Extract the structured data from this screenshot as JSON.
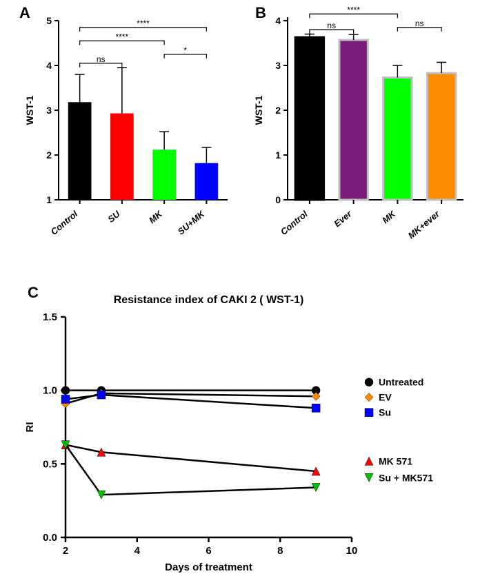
{
  "panelA": {
    "label": "A",
    "type": "bar",
    "ylabel": "WST-1",
    "ylim": [
      1,
      5
    ],
    "yticks": [
      1,
      2,
      3,
      4,
      5
    ],
    "label_fontsize": 14,
    "categories": [
      "Control",
      "SU",
      "MK",
      "SU+MK"
    ],
    "values": [
      3.18,
      2.93,
      2.12,
      1.82
    ],
    "errors": [
      0.62,
      1.02,
      0.4,
      0.35
    ],
    "bar_colors": [
      "#000000",
      "#ff0000",
      "#00ff00",
      "#0000ff"
    ],
    "bar_width": 0.55,
    "comparisons": [
      {
        "from": 0,
        "to": 2,
        "label": "****",
        "y": 4.55
      },
      {
        "from": 0,
        "to": 3,
        "label": "****",
        "y": 4.85
      },
      {
        "from": 2,
        "to": 3,
        "label": "*",
        "y": 4.25
      },
      {
        "from": 0,
        "to": 1,
        "label": "ns",
        "y": 4.05
      }
    ],
    "axis_color": "#000000",
    "text_color": "#000000"
  },
  "panelB": {
    "label": "B",
    "type": "bar",
    "ylabel": "WST-1",
    "ylim": [
      0,
      4
    ],
    "yticks": [
      0,
      1,
      2,
      3,
      4
    ],
    "label_fontsize": 14,
    "categories": [
      "Control",
      "Ever",
      "MK",
      "MK+ever"
    ],
    "values": [
      3.63,
      3.57,
      2.73,
      2.83
    ],
    "errors": [
      0.07,
      0.12,
      0.27,
      0.24
    ],
    "bar_face": [
      "#000000",
      "#7a1a7a",
      "#00ff00",
      "#ff8c00"
    ],
    "bar_edge": [
      "#000000",
      "#bfbfbf",
      "#bfbfbf",
      "#bfbfbf"
    ],
    "bar_width": 0.65,
    "comparisons": [
      {
        "from": 0,
        "to": 3,
        "label": "****",
        "y": 4.45
      },
      {
        "from": 0,
        "to": 2,
        "label": "****",
        "y": 4.15
      },
      {
        "from": 2,
        "to": 3,
        "label": "ns",
        "y": 3.85
      },
      {
        "from": 0,
        "to": 1,
        "label": "ns",
        "y": 3.8
      }
    ],
    "axis_color": "#000000",
    "text_color": "#000000"
  },
  "panelC": {
    "label": "C",
    "type": "line",
    "title": "Resistance index of CAKI 2 ( WST-1)",
    "title_fontsize": 16,
    "xlabel": "Days of treatment",
    "ylabel": "RI",
    "xlim": [
      2,
      10
    ],
    "ylim": [
      0.0,
      1.5
    ],
    "xticks": [
      2,
      4,
      6,
      8,
      10
    ],
    "yticks": [
      0.0,
      0.5,
      1.0,
      1.5
    ],
    "series": [
      {
        "name": "Untreated",
        "marker": "circle",
        "color": "#000000",
        "x": [
          2,
          3,
          9
        ],
        "y": [
          1.0,
          1.0,
          1.0
        ]
      },
      {
        "name": "EV",
        "marker": "diamond",
        "color": "#ff8c00",
        "x": [
          2,
          3,
          9
        ],
        "y": [
          0.91,
          0.98,
          0.96
        ]
      },
      {
        "name": "Su",
        "marker": "square",
        "color": "#0000ff",
        "x": [
          2,
          3,
          9
        ],
        "y": [
          0.94,
          0.97,
          0.88
        ]
      },
      {
        "name": "MK 571",
        "marker": "triangle",
        "color": "#ff0000",
        "x": [
          2,
          3,
          9
        ],
        "y": [
          0.63,
          0.58,
          0.45
        ]
      },
      {
        "name": "Su + MK571",
        "marker": "invtriangle",
        "color": "#00c000",
        "x": [
          2,
          3,
          9
        ],
        "y": [
          0.63,
          0.29,
          0.34
        ]
      }
    ],
    "legend_groups": [
      [
        "Untreated",
        "EV",
        "Su"
      ],
      [
        "MK 571",
        "Su + MK571"
      ]
    ],
    "line_color": "#000000",
    "axis_color": "#000000"
  }
}
